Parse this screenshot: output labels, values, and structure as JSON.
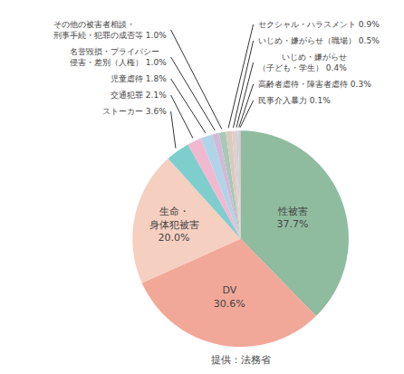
{
  "chart_data": {
    "type": "pie",
    "categories": [
      "性被害",
      "DV",
      "生命・\n身体犯被害",
      "ストーカー",
      "交通犯罪",
      "児童虐待",
      "名誉毀損・プライバシー\n侵害・差別（人権）",
      "その他の被害者相談・\n刑事手続・犯罪の成否等",
      "セクシャル・ハラスメント",
      "いじめ・嫌がらせ（職場）",
      "いじめ・嫌がらせ\n（子ども・学生）",
      "高齢者虐待・障害者虐待",
      "民事介入暴力"
    ],
    "values": [
      37.7,
      30.6,
      20.0,
      3.6,
      2.1,
      1.8,
      1.0,
      1.0,
      0.9,
      0.5,
      0.4,
      0.3,
      0.1
    ],
    "value_labels": [
      "性被害\n37.7%",
      "DV\n30.6%",
      "生命・\n身体犯被害\n20.0%",
      "ストーカー 3.6%",
      "交通犯罪 2.1%",
      "児童虐待 1.8%",
      "名誉毀損・プライバシー\n侵害・差別（人権） 1.0%",
      "その他の被害者相談・\n刑事手続・犯罪の成否等 1.0%",
      "セクシャル・ハラスメント 0.9%",
      "いじめ・嫌がらせ（職場） 0.5%",
      "いじめ・嫌がらせ\n（子ども・学生） 0.4%",
      "高齢者虐待・障害者虐待 0.3%",
      "民事介入暴力 0.1%"
    ],
    "colors": [
      "#8fbc9e",
      "#f2a898",
      "#f5cfc0",
      "#7ecece",
      "#f2b8d0",
      "#b0d4e8",
      "#d4b8d8",
      "#a8c8b8",
      "#d8ccbc",
      "#e8c8d4",
      "#c8d8c0",
      "#d4c8e8",
      "#c8b8a8"
    ],
    "annotations": [
      "提供：法務省"
    ]
  }
}
